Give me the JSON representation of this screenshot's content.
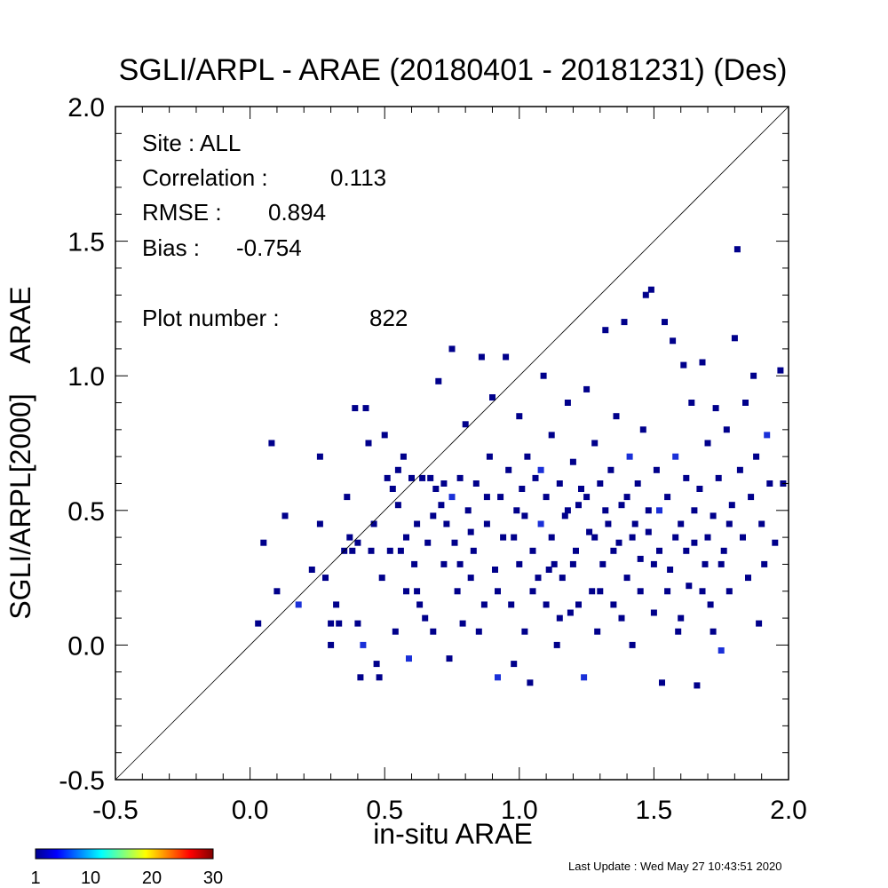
{
  "chart_data": {
    "type": "scatter",
    "title": "SGLI/ARPL - ARAE (20180401 - 20181231) (Des)",
    "xlabel": "in-situ ARAE",
    "ylabel": "SGLI/ARPL[2000]    ARAE",
    "xlim": [
      -0.5,
      2.0
    ],
    "ylim": [
      -0.5,
      2.0
    ],
    "xticks": [
      "-0.5",
      "0.0",
      "0.5",
      "1.0",
      "1.5",
      "2.0"
    ],
    "yticks": [
      "-0.5",
      "0.0",
      "0.5",
      "1.0",
      "1.5",
      "2.0"
    ],
    "reference_line": "1:1",
    "stats": {
      "site_label": "Site : ALL",
      "correlation_label": "Correlation :",
      "correlation": "0.113",
      "rmse_label": "RMSE :",
      "rmse": "0.894",
      "bias_label": "Bias :",
      "bias": "-0.754",
      "plot_number_label": "Plot number :",
      "plot_number": "822"
    },
    "colorbar": {
      "ticks": [
        "1",
        "10",
        "20",
        "30"
      ],
      "min": 1,
      "max": 30,
      "colors": [
        "#00008f",
        "#0000ff",
        "#00ffff",
        "#ffff00",
        "#ff0000",
        "#800000"
      ]
    },
    "point_color": "#00008b",
    "point_color_dense": "#1a30d8",
    "points": [
      [
        0.03,
        0.08
      ],
      [
        0.05,
        0.38
      ],
      [
        0.08,
        0.75
      ],
      [
        0.1,
        0.2
      ],
      [
        0.13,
        0.48
      ],
      [
        0.18,
        0.15
      ],
      [
        0.23,
        0.28
      ],
      [
        0.26,
        0.7
      ],
      [
        0.26,
        0.45
      ],
      [
        0.28,
        0.25
      ],
      [
        0.3,
        0.0
      ],
      [
        0.3,
        0.08
      ],
      [
        0.32,
        0.15
      ],
      [
        0.33,
        0.08
      ],
      [
        0.35,
        0.35
      ],
      [
        0.36,
        0.55
      ],
      [
        0.37,
        0.4
      ],
      [
        0.38,
        0.35
      ],
      [
        0.39,
        0.88
      ],
      [
        0.4,
        0.08
      ],
      [
        0.4,
        0.38
      ],
      [
        0.41,
        -0.12
      ],
      [
        0.42,
        0.0
      ],
      [
        0.43,
        0.88
      ],
      [
        0.44,
        0.75
      ],
      [
        0.45,
        0.35
      ],
      [
        0.46,
        0.45
      ],
      [
        0.47,
        -0.07
      ],
      [
        0.48,
        -0.12
      ],
      [
        0.49,
        0.25
      ],
      [
        0.5,
        0.78
      ],
      [
        0.51,
        0.62
      ],
      [
        0.52,
        0.35
      ],
      [
        0.53,
        0.58
      ],
      [
        0.54,
        0.05
      ],
      [
        0.55,
        0.52
      ],
      [
        0.56,
        0.35
      ],
      [
        0.57,
        0.7
      ],
      [
        0.58,
        0.2
      ],
      [
        0.59,
        -0.05
      ],
      [
        0.6,
        0.62
      ],
      [
        0.61,
        0.3
      ],
      [
        0.62,
        0.45
      ],
      [
        0.63,
        0.15
      ],
      [
        0.64,
        0.62
      ],
      [
        0.65,
        0.1
      ],
      [
        0.66,
        0.38
      ],
      [
        0.67,
        0.62
      ],
      [
        0.68,
        0.05
      ],
      [
        0.69,
        0.58
      ],
      [
        0.7,
        0.98
      ],
      [
        0.71,
        0.52
      ],
      [
        0.72,
        0.3
      ],
      [
        0.73,
        0.45
      ],
      [
        0.74,
        -0.05
      ],
      [
        0.75,
        1.1
      ],
      [
        0.75,
        0.55
      ],
      [
        0.76,
        0.38
      ],
      [
        0.77,
        0.2
      ],
      [
        0.78,
        0.62
      ],
      [
        0.79,
        0.08
      ],
      [
        0.8,
        0.82
      ],
      [
        0.81,
        0.5
      ],
      [
        0.82,
        0.25
      ],
      [
        0.83,
        0.35
      ],
      [
        0.84,
        0.6
      ],
      [
        0.85,
        0.05
      ],
      [
        0.86,
        1.07
      ],
      [
        0.87,
        0.15
      ],
      [
        0.88,
        0.45
      ],
      [
        0.89,
        0.7
      ],
      [
        0.9,
        0.92
      ],
      [
        0.91,
        0.28
      ],
      [
        0.92,
        -0.12
      ],
      [
        0.93,
        0.55
      ],
      [
        0.94,
        0.4
      ],
      [
        0.95,
        1.07
      ],
      [
        0.96,
        0.65
      ],
      [
        0.97,
        0.15
      ],
      [
        0.98,
        -0.07
      ],
      [
        0.99,
        0.5
      ],
      [
        1.0,
        0.85
      ],
      [
        1.0,
        0.3
      ],
      [
        1.01,
        0.58
      ],
      [
        1.02,
        0.05
      ],
      [
        1.03,
        0.7
      ],
      [
        1.04,
        -0.14
      ],
      [
        1.05,
        0.35
      ],
      [
        1.06,
        0.62
      ],
      [
        1.07,
        0.25
      ],
      [
        1.08,
        0.45
      ],
      [
        1.09,
        1.0
      ],
      [
        1.1,
        0.15
      ],
      [
        1.1,
        0.55
      ],
      [
        1.11,
        0.28
      ],
      [
        1.12,
        0.78
      ],
      [
        1.13,
        0.3
      ],
      [
        1.14,
        0.0
      ],
      [
        1.15,
        0.6
      ],
      [
        1.16,
        0.25
      ],
      [
        1.17,
        0.48
      ],
      [
        1.18,
        0.9
      ],
      [
        1.19,
        0.12
      ],
      [
        1.2,
        0.68
      ],
      [
        1.21,
        0.35
      ],
      [
        1.22,
        0.52
      ],
      [
        1.23,
        0.58
      ],
      [
        1.24,
        -0.12
      ],
      [
        1.25,
        0.95
      ],
      [
        1.26,
        0.42
      ],
      [
        1.27,
        0.2
      ],
      [
        1.28,
        0.75
      ],
      [
        1.29,
        0.05
      ],
      [
        1.3,
        0.6
      ],
      [
        1.31,
        0.3
      ],
      [
        1.32,
        1.17
      ],
      [
        1.33,
        0.45
      ],
      [
        1.34,
        0.65
      ],
      [
        1.35,
        0.15
      ],
      [
        1.36,
        0.85
      ],
      [
        1.37,
        0.38
      ],
      [
        1.38,
        0.52
      ],
      [
        1.39,
        1.2
      ],
      [
        1.4,
        0.25
      ],
      [
        1.41,
        0.7
      ],
      [
        1.42,
        0.0
      ],
      [
        1.43,
        0.45
      ],
      [
        1.44,
        0.6
      ],
      [
        1.45,
        0.32
      ],
      [
        1.46,
        0.8
      ],
      [
        1.47,
        1.3
      ],
      [
        1.48,
        0.5
      ],
      [
        1.49,
        1.32
      ],
      [
        1.5,
        0.12
      ],
      [
        1.51,
        0.65
      ],
      [
        1.52,
        0.35
      ],
      [
        1.53,
        -0.14
      ],
      [
        1.54,
        1.2
      ],
      [
        1.55,
        0.55
      ],
      [
        1.56,
        0.28
      ],
      [
        1.57,
        1.13
      ],
      [
        1.58,
        0.7
      ],
      [
        1.59,
        0.05
      ],
      [
        1.6,
        0.45
      ],
      [
        1.61,
        1.04
      ],
      [
        1.62,
        0.62
      ],
      [
        1.63,
        0.22
      ],
      [
        1.64,
        0.9
      ],
      [
        1.65,
        0.38
      ],
      [
        1.66,
        -0.15
      ],
      [
        1.67,
        0.58
      ],
      [
        1.68,
        1.05
      ],
      [
        1.69,
        0.3
      ],
      [
        1.7,
        0.75
      ],
      [
        1.71,
        0.15
      ],
      [
        1.72,
        0.48
      ],
      [
        1.73,
        0.88
      ],
      [
        1.74,
        0.62
      ],
      [
        1.75,
        -0.02
      ],
      [
        1.76,
        0.35
      ],
      [
        1.77,
        0.8
      ],
      [
        1.78,
        0.2
      ],
      [
        1.79,
        0.52
      ],
      [
        1.8,
        1.14
      ],
      [
        1.81,
        1.47
      ],
      [
        1.82,
        0.65
      ],
      [
        1.83,
        0.4
      ],
      [
        1.84,
        0.9
      ],
      [
        1.85,
        0.25
      ],
      [
        1.86,
        0.55
      ],
      [
        1.87,
        1.0
      ],
      [
        1.88,
        0.7
      ],
      [
        1.89,
        0.08
      ],
      [
        1.9,
        0.45
      ],
      [
        1.91,
        0.3
      ],
      [
        1.92,
        0.78
      ],
      [
        1.93,
        0.6
      ],
      [
        1.95,
        0.38
      ],
      [
        1.97,
        1.02
      ],
      [
        1.98,
        0.6
      ],
      [
        0.55,
        0.65
      ],
      [
        0.58,
        0.4
      ],
      [
        0.62,
        0.2
      ],
      [
        0.68,
        0.48
      ],
      [
        0.72,
        0.6
      ],
      [
        0.78,
        0.3
      ],
      [
        0.82,
        0.42
      ],
      [
        0.88,
        0.55
      ],
      [
        0.92,
        0.2
      ],
      [
        0.98,
        0.4
      ],
      [
        1.02,
        0.48
      ],
      [
        1.05,
        0.2
      ],
      [
        1.08,
        0.65
      ],
      [
        1.12,
        0.4
      ],
      [
        1.15,
        0.1
      ],
      [
        1.18,
        0.5
      ],
      [
        1.2,
        0.3
      ],
      [
        1.22,
        0.15
      ],
      [
        1.25,
        0.55
      ],
      [
        1.28,
        0.4
      ],
      [
        1.3,
        0.2
      ],
      [
        1.32,
        0.5
      ],
      [
        1.35,
        0.35
      ],
      [
        1.38,
        0.1
      ],
      [
        1.4,
        0.55
      ],
      [
        1.42,
        0.4
      ],
      [
        1.45,
        0.2
      ],
      [
        1.48,
        0.42
      ],
      [
        1.5,
        0.3
      ],
      [
        1.52,
        0.5
      ],
      [
        1.55,
        0.2
      ],
      [
        1.58,
        0.4
      ],
      [
        1.6,
        0.1
      ],
      [
        1.62,
        0.35
      ],
      [
        1.65,
        0.5
      ],
      [
        1.68,
        0.2
      ],
      [
        1.7,
        0.4
      ],
      [
        1.72,
        0.05
      ],
      [
        1.75,
        0.3
      ],
      [
        1.78,
        0.45
      ]
    ]
  },
  "footer": {
    "last_update": "Last Update : Wed May 27 10:43:51 2020"
  }
}
